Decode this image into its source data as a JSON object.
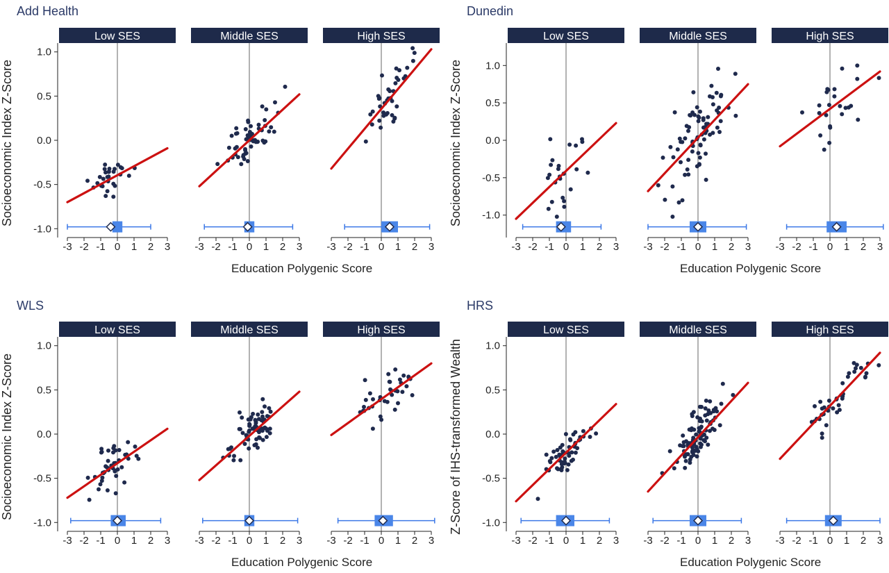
{
  "colors": {
    "panel_title": "#2b3a67",
    "strip_bg": "#1e2a4a",
    "strip_text": "#ffffff",
    "points": "#1f2a4d",
    "fit_line": "#cc1111",
    "boxplot": "#3b78e7",
    "boxplot_fill": "#4a86e8",
    "mean_marker_fill": "#ffffff",
    "zero_line": "#999999",
    "axis": "#222222"
  },
  "chart_data": [
    {
      "type": "scatter",
      "title": "Add Health",
      "ylabel": "Socioeconomic Index Z-Score",
      "xlabel": "Education Polygenic Score",
      "ylim": [
        -1.1,
        1.1
      ],
      "xlim": [
        -3.5,
        3.5
      ],
      "yticks": [
        "-1.0",
        "-0.5",
        "0.0",
        "0.5",
        "1.0"
      ],
      "xticks": [
        "-3",
        "-2",
        "-1",
        "0",
        "1",
        "2",
        "3"
      ],
      "facets": [
        {
          "label": "Low SES",
          "line": [
            [
              -3,
              -0.7
            ],
            [
              3,
              -0.09
            ]
          ],
          "box": [
            -3.0,
            -0.3,
            0.3,
            2.0
          ],
          "mean": -0.4,
          "points_center": [
            -0.4,
            -0.45
          ],
          "n": 30,
          "spread": [
            0.55,
            0.1
          ]
        },
        {
          "label": "Middle SES",
          "line": [
            [
              -3,
              -0.52
            ],
            [
              3,
              0.52
            ]
          ],
          "box": [
            -2.7,
            -0.3,
            0.3,
            2.6
          ],
          "mean": -0.1,
          "points_center": [
            0.0,
            0.0
          ],
          "n": 60,
          "spread": [
            0.75,
            0.14
          ]
        },
        {
          "label": "High SES",
          "line": [
            [
              -3,
              -0.32
            ],
            [
              3,
              1.03
            ]
          ],
          "box": [
            -2.2,
            0.0,
            1.0,
            2.9
          ],
          "mean": 0.5,
          "points_center": [
            0.7,
            0.35
          ],
          "n": 40,
          "spread": [
            0.85,
            0.16
          ]
        }
      ]
    },
    {
      "type": "scatter",
      "title": "Dunedin",
      "ylabel": "Socioeconomic Index Z-Score",
      "xlabel": "Education Polygenic Score",
      "ylim": [
        -1.3,
        1.3
      ],
      "xlim": [
        -3.5,
        3.5
      ],
      "yticks": [
        "-1.0",
        "-0.5",
        "0.0",
        "0.5",
        "1.0"
      ],
      "xticks": [
        "-3",
        "-2",
        "-1",
        "0",
        "1",
        "2",
        "3"
      ],
      "facets": [
        {
          "label": "Low SES",
          "line": [
            [
              -3,
              -1.05
            ],
            [
              3,
              0.23
            ]
          ],
          "box": [
            -2.6,
            -0.6,
            0.3,
            2.1
          ],
          "mean": -0.3,
          "points_center": [
            -0.3,
            -0.45
          ],
          "n": 25,
          "spread": [
            0.6,
            0.3
          ]
        },
        {
          "label": "Middle SES",
          "line": [
            [
              -3,
              -0.68
            ],
            [
              3,
              0.75
            ]
          ],
          "box": [
            -3.0,
            -0.5,
            0.5,
            2.9
          ],
          "mean": 0.0,
          "points_center": [
            0.0,
            0.05
          ],
          "n": 80,
          "spread": [
            0.9,
            0.3
          ]
        },
        {
          "label": "High SES",
          "line": [
            [
              -3,
              -0.08
            ],
            [
              3,
              0.92
            ]
          ],
          "box": [
            -2.6,
            -0.2,
            1.0,
            3.2
          ],
          "mean": 0.4,
          "points_center": [
            0.5,
            0.45
          ],
          "n": 25,
          "spread": [
            0.8,
            0.28
          ]
        }
      ]
    },
    {
      "type": "scatter",
      "title": "WLS",
      "ylabel": "Socioeconomic Index Z-Score",
      "xlabel": "Education Polygenic Score",
      "ylim": [
        -1.1,
        1.1
      ],
      "xlim": [
        -3.5,
        3.5
      ],
      "yticks": [
        "-1.0",
        "-0.5",
        "0.0",
        "0.5",
        "1.0"
      ],
      "xticks": [
        "-3",
        "-2",
        "-1",
        "0",
        "1",
        "2",
        "3"
      ],
      "facets": [
        {
          "label": "Low SES",
          "line": [
            [
              -3,
              -0.72
            ],
            [
              3,
              0.06
            ]
          ],
          "box": [
            -2.8,
            -0.4,
            0.5,
            2.6
          ],
          "mean": 0.0,
          "points_center": [
            -0.3,
            -0.35
          ],
          "n": 45,
          "spread": [
            0.7,
            0.12
          ]
        },
        {
          "label": "Middle SES",
          "line": [
            [
              -3,
              -0.52
            ],
            [
              3,
              0.48
            ]
          ],
          "box": [
            -2.8,
            -0.3,
            0.3,
            2.9
          ],
          "mean": 0.0,
          "points_center": [
            0.2,
            0.05
          ],
          "n": 70,
          "spread": [
            0.8,
            0.13
          ]
        },
        {
          "label": "High SES",
          "line": [
            [
              -3,
              -0.01
            ],
            [
              3,
              0.8
            ]
          ],
          "box": [
            -2.6,
            -0.4,
            0.7,
            3.2
          ],
          "mean": 0.1,
          "points_center": [
            0.4,
            0.45
          ],
          "n": 40,
          "spread": [
            0.85,
            0.13
          ]
        }
      ]
    },
    {
      "type": "scatter",
      "title": "HRS",
      "ylabel": "Z-Score of IHS-transformed Wealth",
      "xlabel": "Education Polygenic Score",
      "ylim": [
        -1.1,
        1.1
      ],
      "xlim": [
        -3.5,
        3.5
      ],
      "yticks": [
        "-1.0",
        "-0.5",
        "0.0",
        "0.5",
        "1.0"
      ],
      "xticks": [
        "-3",
        "-2",
        "-1",
        "0",
        "1",
        "2",
        "3"
      ],
      "facets": [
        {
          "label": "Low SES",
          "line": [
            [
              -3,
              -0.76
            ],
            [
              3,
              0.34
            ]
          ],
          "box": [
            -2.7,
            -0.6,
            0.5,
            2.6
          ],
          "mean": 0.0,
          "points_center": [
            0.0,
            -0.2
          ],
          "n": 60,
          "spread": [
            0.65,
            0.12
          ]
        },
        {
          "label": "Middle SES",
          "line": [
            [
              -3,
              -0.65
            ],
            [
              3,
              0.58
            ]
          ],
          "box": [
            -2.7,
            -0.5,
            0.5,
            2.6
          ],
          "mean": 0.0,
          "points_center": [
            0.1,
            -0.05
          ],
          "n": 100,
          "spread": [
            0.8,
            0.14
          ]
        },
        {
          "label": "High SES",
          "line": [
            [
              -3,
              -0.28
            ],
            [
              3,
              0.92
            ]
          ],
          "box": [
            -2.6,
            -0.3,
            0.7,
            3.0
          ],
          "mean": 0.2,
          "points_center": [
            0.5,
            0.35
          ],
          "n": 40,
          "spread": [
            0.85,
            0.14
          ]
        }
      ]
    }
  ]
}
